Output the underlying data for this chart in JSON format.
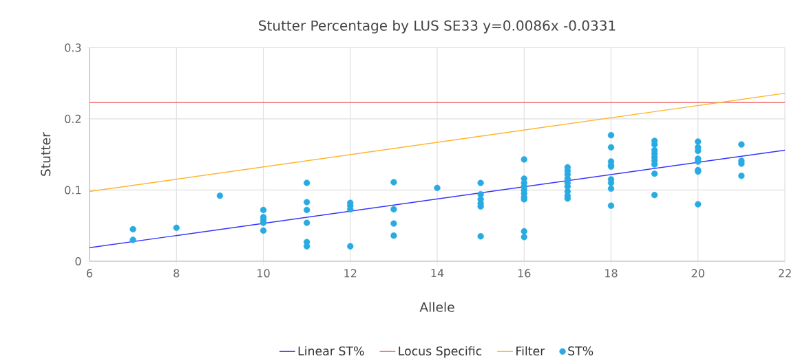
{
  "chart_data": {
    "type": "scatter",
    "title": "Stutter Percentage by LUS SE33 y=0.0086x -0.0331",
    "xlabel": "Allele",
    "ylabel": "Stutter",
    "xlim": [
      6,
      22
    ],
    "xticks": [
      6,
      8,
      10,
      12,
      14,
      16,
      18,
      20,
      22
    ],
    "ylim": [
      0,
      0.3
    ],
    "yticks": [
      0,
      0.1,
      0.2,
      0.3
    ],
    "grid": true,
    "legend": "bottom",
    "series": [
      {
        "name": "Linear ST%",
        "type": "line",
        "color": "#3333ff",
        "marker": "none",
        "x": [
          6,
          22
        ],
        "values": [
          0.019,
          0.156
        ]
      },
      {
        "name": "Locus Specific",
        "type": "line",
        "color": "#f06b6b",
        "marker": "none",
        "x": [
          6,
          22
        ],
        "values": [
          0.223,
          0.223
        ]
      },
      {
        "name": "Filter",
        "type": "line",
        "color": "#ffb52e",
        "marker": "none",
        "x": [
          6,
          22
        ],
        "values": [
          0.098,
          0.236
        ]
      },
      {
        "name": "ST%",
        "color": "#29abe2",
        "marker": "circle",
        "x": [
          7,
          7,
          8,
          9,
          10,
          10,
          10,
          10,
          10,
          11,
          11,
          11,
          11,
          11,
          11,
          12,
          12,
          12,
          12,
          13,
          13,
          13,
          13,
          14,
          15,
          15,
          15,
          15,
          15,
          15,
          16,
          16,
          16,
          16,
          16,
          16,
          16,
          16,
          16,
          16,
          17,
          17,
          17,
          17,
          17,
          17,
          17,
          17,
          17,
          18,
          18,
          18,
          18,
          18,
          18,
          18,
          18,
          18,
          19,
          19,
          19,
          19,
          19,
          19,
          19,
          19,
          19,
          20,
          20,
          20,
          20,
          20,
          20,
          20,
          20,
          21,
          21,
          21,
          21
        ],
        "values": [
          0.045,
          0.03,
          0.047,
          0.092,
          0.072,
          0.062,
          0.058,
          0.054,
          0.043,
          0.11,
          0.083,
          0.072,
          0.054,
          0.027,
          0.021,
          0.082,
          0.078,
          0.073,
          0.021,
          0.111,
          0.073,
          0.053,
          0.036,
          0.103,
          0.11,
          0.094,
          0.087,
          0.081,
          0.077,
          0.035,
          0.143,
          0.116,
          0.11,
          0.105,
          0.1,
          0.095,
          0.09,
          0.087,
          0.042,
          0.034,
          0.132,
          0.127,
          0.122,
          0.116,
          0.11,
          0.105,
          0.098,
          0.092,
          0.088,
          0.177,
          0.16,
          0.14,
          0.135,
          0.133,
          0.115,
          0.11,
          0.102,
          0.078,
          0.169,
          0.164,
          0.156,
          0.151,
          0.146,
          0.141,
          0.136,
          0.123,
          0.093,
          0.168,
          0.16,
          0.155,
          0.144,
          0.14,
          0.128,
          0.126,
          0.08,
          0.164,
          0.141,
          0.137,
          0.12
        ]
      }
    ]
  }
}
